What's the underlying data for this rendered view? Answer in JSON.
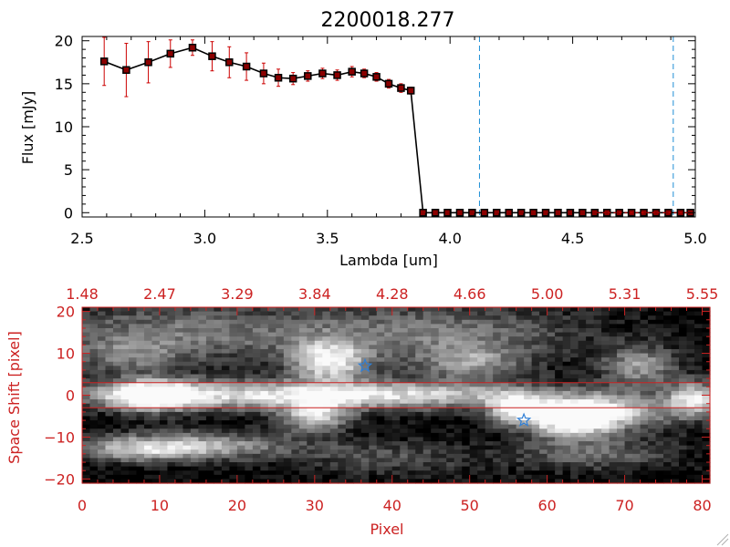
{
  "chart_data": [
    {
      "type": "line",
      "title": "2200018.277",
      "xlabel": "Lambda [um]",
      "ylabel": "Flux [mJy]",
      "xlim": [
        2.5,
        5.0
      ],
      "ylim": [
        -0.5,
        20.5
      ],
      "xticks": [
        "2.5",
        "3.0",
        "3.5",
        "4.0",
        "4.5",
        "5.0"
      ],
      "yticks": [
        "0",
        "5",
        "10",
        "15",
        "20"
      ],
      "line_color": "#000000",
      "marker_color": "#000000",
      "marker_fill": "#8b0000",
      "errorbar_color": "#cc0000",
      "vline_color": "#1f8fd6",
      "vlines": [
        4.12,
        4.91
      ],
      "series": [
        {
          "x": [
            2.59,
            2.68,
            2.77,
            2.86,
            2.95,
            3.03,
            3.1,
            3.17,
            3.24,
            3.3,
            3.36,
            3.42,
            3.48,
            3.54,
            3.6,
            3.65,
            3.7,
            3.75,
            3.8,
            3.84
          ],
          "y": [
            17.6,
            16.6,
            17.5,
            18.5,
            19.2,
            18.2,
            17.5,
            17.0,
            16.2,
            15.7,
            15.6,
            15.9,
            16.2,
            16.0,
            16.4,
            16.2,
            15.8,
            15.0,
            14.5,
            14.2
          ],
          "err": [
            2.8,
            3.1,
            2.4,
            1.6,
            0.9,
            1.7,
            1.8,
            1.6,
            1.2,
            1.0,
            0.7,
            0.6,
            0.6,
            0.6,
            0.6,
            0.5,
            0.5,
            0.5,
            0.5,
            0.4
          ]
        },
        {
          "x": [
            3.89,
            3.94,
            3.99,
            4.04,
            4.09,
            4.14,
            4.19,
            4.24,
            4.29,
            4.34,
            4.39,
            4.44,
            4.49,
            4.54,
            4.59,
            4.64,
            4.69,
            4.74,
            4.79,
            4.84,
            4.89,
            4.94,
            4.98
          ],
          "y": [
            0,
            0,
            0,
            0,
            0,
            0,
            0,
            0,
            0,
            0,
            0,
            0,
            0,
            0,
            0,
            0,
            0,
            0,
            0,
            0,
            0,
            0,
            0
          ]
        }
      ]
    },
    {
      "type": "heatmap",
      "xlabel": "Pixel",
      "ylabel": "Space Shift [pixel]",
      "xlim": [
        0,
        81
      ],
      "ylim": [
        -21,
        21
      ],
      "xticks": [
        "0",
        "10",
        "20",
        "30",
        "40",
        "50",
        "60",
        "70",
        "80"
      ],
      "yticks": [
        "−20",
        "−10",
        "0",
        "10",
        "20"
      ],
      "top_xticks": [
        "1.48",
        "2.47",
        "3.29",
        "3.84",
        "4.28",
        "4.66",
        "5.00",
        "5.31",
        "5.55"
      ],
      "axis_color": "#cc2222",
      "band_color": "#cc2222",
      "band_y": [
        3,
        -3
      ],
      "star_color": "#2f7fd6",
      "stars": [
        {
          "x": 36.5,
          "y": 7
        },
        {
          "x": 57,
          "y": -6
        }
      ],
      "blobs": [
        {
          "x": 9,
          "y": 0,
          "sx": 4,
          "sy": 2.5,
          "v": 1.0
        },
        {
          "x": 20,
          "y": 0,
          "sx": 16,
          "sy": 2.5,
          "v": 0.75
        },
        {
          "x": 45,
          "y": 0,
          "sx": 14,
          "sy": 2.5,
          "v": 0.6
        },
        {
          "x": 32,
          "y": 8,
          "sx": 3.5,
          "sy": 3.5,
          "v": 0.9
        },
        {
          "x": 30,
          "y": -5,
          "sx": 3,
          "sy": 2.5,
          "v": 0.85
        },
        {
          "x": 56,
          "y": -3.5,
          "sx": 2.5,
          "sy": 2.5,
          "v": 0.85
        },
        {
          "x": 63,
          "y": -6,
          "sx": 4,
          "sy": 3,
          "v": 0.95
        },
        {
          "x": 68,
          "y": -4,
          "sx": 6,
          "sy": 3,
          "v": 0.75
        },
        {
          "x": 79,
          "y": -1,
          "sx": 2.5,
          "sy": 3,
          "v": 0.9
        },
        {
          "x": 15,
          "y": -12,
          "sx": 10,
          "sy": 2.5,
          "v": 0.6
        },
        {
          "x": 8,
          "y": -13,
          "sx": 6,
          "sy": 2,
          "v": 0.5
        },
        {
          "x": 72,
          "y": 7,
          "sx": 3.5,
          "sy": 3.5,
          "v": 0.6
        },
        {
          "x": 12,
          "y": 15,
          "sx": 14,
          "sy": 5,
          "v": 0.45
        },
        {
          "x": 46,
          "y": 15,
          "sx": 14,
          "sy": 5,
          "v": 0.45
        },
        {
          "x": 6,
          "y": 9,
          "sx": 5,
          "sy": 3,
          "v": 0.35
        },
        {
          "x": 50,
          "y": 8,
          "sx": 5,
          "sy": 3,
          "v": 0.5
        },
        {
          "x": 66,
          "y": -14,
          "sx": 8,
          "sy": 3,
          "v": 0.4
        },
        {
          "x": 40,
          "y": -15,
          "sx": 8,
          "sy": 3,
          "v": 0.3
        }
      ]
    }
  ]
}
